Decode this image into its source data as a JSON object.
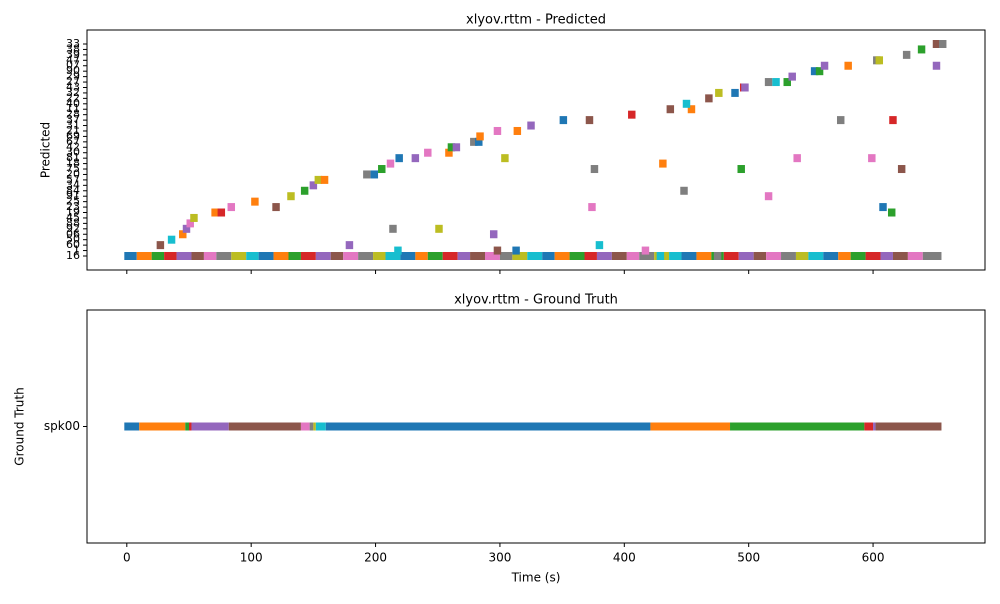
{
  "chart_data": [
    {
      "type": "timeline",
      "title": "xlyov.rttm - Predicted",
      "ylabel": "Predicted",
      "xlim": [
        -32,
        690
      ],
      "xticks": [
        0,
        100,
        200,
        300,
        400,
        500,
        600
      ],
      "show_xtick_labels": false,
      "series": [
        {
          "name": "16",
          "starts": [
            -2,
            8,
            20,
            30,
            40,
            52,
            62,
            72,
            84,
            96,
            106,
            118,
            130,
            140,
            152,
            164,
            174,
            186,
            198,
            208,
            220,
            232,
            242,
            254,
            266,
            276,
            288,
            300,
            310,
            322,
            334,
            344,
            356,
            368,
            378,
            390,
            402,
            412,
            424,
            436,
            446,
            458,
            470,
            480,
            492,
            504,
            514,
            526,
            538,
            548,
            560,
            572,
            582,
            594,
            606,
            616,
            628,
            640,
            426,
            472
          ],
          "ends": [
            8,
            20,
            30,
            40,
            52,
            62,
            72,
            84,
            96,
            106,
            118,
            130,
            140,
            152,
            164,
            174,
            186,
            198,
            208,
            220,
            232,
            242,
            254,
            266,
            276,
            288,
            300,
            310,
            322,
            334,
            344,
            356,
            368,
            378,
            390,
            402,
            412,
            424,
            436,
            446,
            458,
            470,
            480,
            492,
            504,
            514,
            526,
            538,
            548,
            560,
            572,
            582,
            594,
            606,
            616,
            628,
            640,
            655,
            432,
            478
          ],
          "colors": [
            "#1f77b4",
            "#ff7f0e",
            "#2ca02c",
            "#d62728",
            "#9467bd",
            "#8c564b",
            "#e377c2",
            "#7f7f7f",
            "#bcbd22",
            "#17becf",
            "#1f77b4",
            "#ff7f0e",
            "#2ca02c",
            "#d62728",
            "#9467bd",
            "#8c564b",
            "#e377c2",
            "#7f7f7f",
            "#bcbd22",
            "#17becf",
            "#1f77b4",
            "#ff7f0e",
            "#2ca02c",
            "#d62728",
            "#9467bd",
            "#8c564b",
            "#e377c2",
            "#7f7f7f",
            "#bcbd22",
            "#17becf",
            "#1f77b4",
            "#ff7f0e",
            "#2ca02c",
            "#d62728",
            "#9467bd",
            "#8c564b",
            "#e377c2",
            "#7f7f7f",
            "#bcbd22",
            "#17becf",
            "#1f77b4",
            "#ff7f0e",
            "#2ca02c",
            "#d62728",
            "#9467bd",
            "#8c564b",
            "#e377c2",
            "#7f7f7f",
            "#bcbd22",
            "#17becf",
            "#1f77b4",
            "#ff7f0e",
            "#2ca02c",
            "#d62728",
            "#9467bd",
            "#8c564b",
            "#e377c2",
            "#7f7f7f",
            "#17becf",
            "#7f7f7f"
          ]
        },
        {
          "name": "1",
          "starts": [
            215,
            295,
            310,
            414
          ],
          "ends": [
            221,
            301,
            316,
            420
          ],
          "colors": [
            "#17becf",
            "#8c564b",
            "#1f77b4",
            "#e377c2"
          ]
        },
        {
          "name": "60",
          "starts": [
            24,
            176,
            377
          ],
          "ends": [
            30,
            182,
            383
          ],
          "colors": [
            "#8c564b",
            "#9467bd",
            "#17becf"
          ]
        },
        {
          "name": "50",
          "starts": [
            33
          ],
          "ends": [
            39
          ],
          "colors": [
            "#17becf"
          ]
        },
        {
          "name": "06",
          "starts": [
            42,
            292
          ],
          "ends": [
            48,
            298
          ],
          "colors": [
            "#ff7f0e",
            "#9467bd"
          ]
        },
        {
          "name": "92",
          "starts": [
            45,
            211,
            248
          ],
          "ends": [
            51,
            217,
            254
          ],
          "colors": [
            "#9467bd",
            "#7f7f7f",
            "#bcbd22"
          ]
        },
        {
          "name": "88",
          "starts": [
            48
          ],
          "ends": [
            54
          ],
          "colors": [
            "#e377c2"
          ]
        },
        {
          "name": "45",
          "starts": [
            51
          ],
          "ends": [
            57
          ],
          "colors": [
            "#bcbd22"
          ]
        },
        {
          "name": "19",
          "starts": [
            68,
            73,
            612
          ],
          "ends": [
            74,
            79,
            618
          ],
          "colors": [
            "#ff7f0e",
            "#d62728",
            "#2ca02c"
          ]
        },
        {
          "name": "23",
          "starts": [
            81,
            117,
            371,
            605
          ],
          "ends": [
            87,
            123,
            377,
            611
          ],
          "colors": [
            "#e377c2",
            "#8c564b",
            "#e377c2",
            "#1f77b4"
          ]
        },
        {
          "name": "25",
          "starts": [
            100
          ],
          "ends": [
            106
          ],
          "colors": [
            "#ff7f0e"
          ]
        },
        {
          "name": "91",
          "starts": [
            129,
            513
          ],
          "ends": [
            135,
            519
          ],
          "colors": [
            "#bcbd22",
            "#e377c2"
          ]
        },
        {
          "name": "84",
          "starts": [
            140,
            445
          ],
          "ends": [
            146,
            451
          ],
          "colors": [
            "#2ca02c",
            "#7f7f7f"
          ]
        },
        {
          "name": "34",
          "starts": [
            147
          ],
          "ends": [
            153
          ],
          "colors": [
            "#9467bd"
          ]
        },
        {
          "name": "57",
          "starts": [
            151,
            156
          ],
          "ends": [
            157,
            162
          ],
          "colors": [
            "#bcbd22",
            "#ff7f0e"
          ]
        },
        {
          "name": "20",
          "starts": [
            190,
            196
          ],
          "ends": [
            196,
            202
          ],
          "colors": [
            "#7f7f7f",
            "#1f77b4"
          ]
        },
        {
          "name": "75",
          "starts": [
            202,
            373,
            491,
            620
          ],
          "ends": [
            208,
            379,
            497,
            626
          ],
          "colors": [
            "#2ca02c",
            "#7f7f7f",
            "#2ca02c",
            "#8c564b"
          ]
        },
        {
          "name": "18",
          "starts": [
            209,
            428
          ],
          "ends": [
            215,
            434
          ],
          "colors": [
            "#e377c2",
            "#ff7f0e"
          ]
        },
        {
          "name": "81",
          "starts": [
            216,
            229,
            301,
            536,
            596
          ],
          "ends": [
            222,
            235,
            307,
            542,
            602
          ],
          "colors": [
            "#1f77b4",
            "#9467bd",
            "#bcbd22",
            "#e377c2",
            "#e377c2"
          ]
        },
        {
          "name": "30",
          "starts": [
            239,
            256
          ],
          "ends": [
            245,
            262
          ],
          "colors": [
            "#e377c2",
            "#ff7f0e"
          ]
        },
        {
          "name": "42",
          "starts": [
            258,
            262
          ],
          "ends": [
            264,
            268
          ],
          "colors": [
            "#2ca02c",
            "#9467bd"
          ]
        },
        {
          "name": "67",
          "starts": [
            276,
            280
          ],
          "ends": [
            282,
            286
          ],
          "colors": [
            "#7f7f7f",
            "#1f77b4"
          ]
        },
        {
          "name": "69",
          "starts": [
            281
          ],
          "ends": [
            287
          ],
          "colors": [
            "#ff7f0e"
          ]
        },
        {
          "name": "21",
          "starts": [
            295,
            311
          ],
          "ends": [
            301,
            317
          ],
          "colors": [
            "#e377c2",
            "#ff7f0e"
          ]
        },
        {
          "name": "31",
          "starts": [
            322
          ],
          "ends": [
            328
          ],
          "colors": [
            "#9467bd"
          ]
        },
        {
          "name": "37",
          "starts": [
            348,
            369,
            571,
            613
          ],
          "ends": [
            354,
            375,
            577,
            619
          ],
          "colors": [
            "#1f77b4",
            "#8c564b",
            "#7f7f7f",
            "#d62728"
          ]
        },
        {
          "name": "28",
          "starts": [
            403
          ],
          "ends": [
            409
          ],
          "colors": [
            "#d62728"
          ]
        },
        {
          "name": "11",
          "starts": [
            434,
            451
          ],
          "ends": [
            440,
            457
          ],
          "colors": [
            "#8c564b",
            "#ff7f0e"
          ]
        },
        {
          "name": "40",
          "starts": [
            447
          ],
          "ends": [
            453
          ],
          "colors": [
            "#17becf"
          ]
        },
        {
          "name": "22",
          "starts": [
            465
          ],
          "ends": [
            471
          ],
          "colors": [
            "#8c564b"
          ]
        },
        {
          "name": "32",
          "starts": [
            473,
            486
          ],
          "ends": [
            479,
            492
          ],
          "colors": [
            "#bcbd22",
            "#1f77b4"
          ]
        },
        {
          "name": "43",
          "starts": [
            493,
            494
          ],
          "ends": [
            499,
            500
          ],
          "colors": [
            "#d62728",
            "#9467bd"
          ]
        },
        {
          "name": "27",
          "starts": [
            513,
            519,
            528
          ],
          "ends": [
            519,
            525,
            534
          ],
          "colors": [
            "#7f7f7f",
            "#17becf",
            "#2ca02c"
          ]
        },
        {
          "name": "29",
          "starts": [
            532
          ],
          "ends": [
            538
          ],
          "colors": [
            "#9467bd"
          ]
        },
        {
          "name": "90",
          "starts": [
            550,
            554
          ],
          "ends": [
            556,
            560
          ],
          "colors": [
            "#1f77b4",
            "#2ca02c"
          ]
        },
        {
          "name": "07",
          "starts": [
            558,
            577,
            648
          ],
          "ends": [
            564,
            583,
            654
          ],
          "colors": [
            "#9467bd",
            "#ff7f0e",
            "#9467bd"
          ]
        },
        {
          "name": "47",
          "starts": [
            600,
            602
          ],
          "ends": [
            606,
            608
          ],
          "colors": [
            "#7f7f7f",
            "#bcbd22"
          ]
        },
        {
          "name": "39",
          "starts": [
            624
          ],
          "ends": [
            630
          ],
          "colors": [
            "#7f7f7f"
          ]
        },
        {
          "name": "38",
          "starts": [
            636
          ],
          "ends": [
            642
          ],
          "colors": [
            "#2ca02c"
          ]
        },
        {
          "name": "33",
          "starts": [
            648,
            653
          ],
          "ends": [
            654,
            659
          ],
          "colors": [
            "#8c564b",
            "#7f7f7f"
          ]
        }
      ]
    },
    {
      "type": "timeline",
      "title": "xlyov.rttm - Ground Truth",
      "ylabel": "Ground Truth",
      "xlabel": "Time (s)",
      "xlim": [
        -32,
        690
      ],
      "xticks": [
        0,
        100,
        200,
        300,
        400,
        500,
        600
      ],
      "show_xtick_labels": true,
      "series": [
        {
          "name": "spk00",
          "starts": [
            -2,
            10,
            47,
            50,
            52,
            82,
            140,
            147,
            150,
            152,
            160,
            421,
            485,
            593,
            600,
            602
          ],
          "ends": [
            10,
            47,
            50,
            52,
            82,
            140,
            147,
            150,
            152,
            160,
            421,
            485,
            593,
            600,
            602,
            655
          ],
          "colors": [
            "#1f77b4",
            "#ff7f0e",
            "#2ca02c",
            "#d62728",
            "#9467bd",
            "#8c564b",
            "#e377c2",
            "#7f7f7f",
            "#bcbd22",
            "#17becf",
            "#1f77b4",
            "#ff7f0e",
            "#2ca02c",
            "#d62728",
            "#9467bd",
            "#8c564b"
          ]
        }
      ]
    }
  ]
}
